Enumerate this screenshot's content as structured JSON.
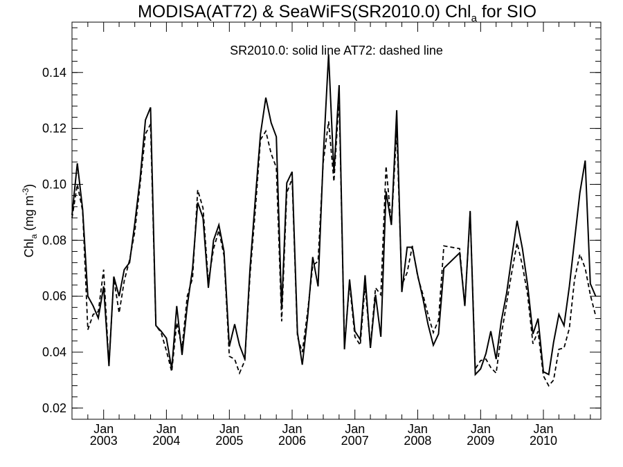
{
  "chart_data": {
    "type": "line",
    "title": {
      "main": "MODISA(AT72) & SeaWiFS(SR2010.0)  Chl",
      "sub": "a",
      "tail": " for SIO"
    },
    "annotation": "SR2010.0: solid line   AT72: dashed line",
    "ylabel": {
      "main": "Chl",
      "sub": "a",
      "mid": " (mg m",
      "sup": "-3",
      "end": ")"
    },
    "ylim": [
      0.016,
      0.158
    ],
    "yticks": [
      "0.02",
      "0.04",
      "0.06",
      "0.08",
      "0.10",
      "0.12",
      "0.14"
    ],
    "xlim": [
      "2002-07-01",
      "2010-12-01"
    ],
    "xticks": [
      {
        "month": "Jan",
        "year": "2003",
        "date": "2003-01-01"
      },
      {
        "month": "Jan",
        "year": "2004",
        "date": "2004-01-01"
      },
      {
        "month": "Jan",
        "year": "2005",
        "date": "2005-01-01"
      },
      {
        "month": "Jan",
        "year": "2006",
        "date": "2006-01-01"
      },
      {
        "month": "Jan",
        "year": "2007",
        "date": "2007-01-01"
      },
      {
        "month": "Jan",
        "year": "2008",
        "date": "2008-01-01"
      },
      {
        "month": "Jan",
        "year": "2009",
        "date": "2009-01-01"
      },
      {
        "month": "Jan",
        "year": "2010",
        "date": "2010-01-01"
      }
    ],
    "grid": false,
    "series": [
      {
        "name": "SR2010.0",
        "style": "solid",
        "color": "#000000",
        "points": [
          [
            "2002-07-01",
            0.089
          ],
          [
            "2002-08-01",
            0.1075
          ],
          [
            "2002-09-01",
            0.091
          ],
          [
            "2002-10-01",
            0.06
          ],
          [
            "2002-11-01",
            0.0565
          ],
          [
            "2002-12-01",
            0.0522
          ],
          [
            "2003-01-01",
            0.0635
          ],
          [
            "2003-02-01",
            0.035
          ],
          [
            "2003-03-01",
            0.067
          ],
          [
            "2003-04-01",
            0.06
          ],
          [
            "2003-05-01",
            0.0695
          ],
          [
            "2003-06-01",
            0.072
          ],
          [
            "2003-07-01",
            0.086
          ],
          [
            "2003-08-01",
            0.102
          ],
          [
            "2003-09-01",
            0.123
          ],
          [
            "2003-10-01",
            0.1275
          ],
          [
            "2003-11-01",
            0.0495
          ],
          [
            "2003-12-01",
            0.0475
          ],
          [
            "2004-01-01",
            0.045
          ],
          [
            "2004-02-01",
            0.034
          ],
          [
            "2004-03-01",
            0.0565
          ],
          [
            "2004-04-01",
            0.039
          ],
          [
            "2004-05-01",
            0.0565
          ],
          [
            "2004-06-01",
            0.07
          ],
          [
            "2004-07-01",
            0.0935
          ],
          [
            "2004-08-01",
            0.088
          ],
          [
            "2004-09-01",
            0.063
          ],
          [
            "2004-10-01",
            0.08
          ],
          [
            "2004-11-01",
            0.0855
          ],
          [
            "2004-12-01",
            0.076
          ],
          [
            "2005-01-01",
            0.042
          ],
          [
            "2005-02-01",
            0.05
          ],
          [
            "2005-03-01",
            0.0425
          ],
          [
            "2005-04-01",
            0.0375
          ],
          [
            "2005-05-01",
            0.07
          ],
          [
            "2005-06-01",
            0.095
          ],
          [
            "2005-07-01",
            0.118
          ],
          [
            "2005-08-01",
            0.131
          ],
          [
            "2005-09-01",
            0.122
          ],
          [
            "2005-10-01",
            0.117
          ],
          [
            "2005-11-01",
            0.0555
          ],
          [
            "2005-12-01",
            0.1005
          ],
          [
            "2006-01-01",
            0.1045
          ],
          [
            "2006-02-01",
            0.047
          ],
          [
            "2006-03-01",
            0.0355
          ],
          [
            "2006-04-01",
            0.0525
          ],
          [
            "2006-05-01",
            0.074
          ],
          [
            "2006-06-01",
            0.0635
          ],
          [
            "2006-07-01",
            0.11
          ],
          [
            "2006-08-01",
            0.1465
          ],
          [
            "2006-09-01",
            0.104
          ],
          [
            "2006-10-01",
            0.1355
          ],
          [
            "2006-11-01",
            0.041
          ],
          [
            "2006-12-01",
            0.066
          ],
          [
            "2007-01-01",
            0.0475
          ],
          [
            "2007-02-01",
            0.0445
          ],
          [
            "2007-03-01",
            0.0675
          ],
          [
            "2007-04-01",
            0.0415
          ],
          [
            "2007-05-01",
            0.0605
          ],
          [
            "2007-06-01",
            0.0455
          ],
          [
            "2007-07-01",
            0.0975
          ],
          [
            "2007-08-01",
            0.0855
          ],
          [
            "2007-09-01",
            0.1265
          ],
          [
            "2007-10-01",
            0.0615
          ],
          [
            "2007-11-01",
            0.0775
          ],
          [
            "2007-12-01",
            0.0775
          ],
          [
            "2008-01-01",
            0.0675
          ],
          [
            "2008-02-01",
            0.059
          ],
          [
            "2008-03-01",
            0.05
          ],
          [
            "2008-04-01",
            0.0425
          ],
          [
            "2008-05-01",
            0.0465
          ],
          [
            "2008-06-01",
            0.07
          ],
          [
            "2008-09-01",
            0.0755
          ],
          [
            "2008-10-01",
            0.0565
          ],
          [
            "2008-11-01",
            0.0905
          ],
          [
            "2008-12-01",
            0.032
          ],
          [
            "2009-01-01",
            0.034
          ],
          [
            "2009-02-01",
            0.0395
          ],
          [
            "2009-03-01",
            0.0475
          ],
          [
            "2009-04-01",
            0.0375
          ],
          [
            "2009-05-01",
            0.051
          ],
          [
            "2009-06-01",
            0.061
          ],
          [
            "2009-07-01",
            0.074
          ],
          [
            "2009-08-01",
            0.087
          ],
          [
            "2009-09-01",
            0.077
          ],
          [
            "2009-10-01",
            0.064
          ],
          [
            "2009-11-01",
            0.0465
          ],
          [
            "2009-12-01",
            0.052
          ],
          [
            "2010-01-01",
            0.033
          ],
          [
            "2010-02-01",
            0.032
          ],
          [
            "2010-03-01",
            0.0435
          ],
          [
            "2010-04-01",
            0.0535
          ],
          [
            "2010-05-01",
            0.0495
          ],
          [
            "2010-06-01",
            0.0635
          ],
          [
            "2010-07-01",
            0.08
          ],
          [
            "2010-08-01",
            0.097
          ],
          [
            "2010-09-01",
            0.1085
          ],
          [
            "2010-10-01",
            0.0645
          ],
          [
            "2010-11-01",
            0.06
          ]
        ]
      },
      {
        "name": "AT72",
        "style": "dashed",
        "color": "#000000",
        "points": [
          [
            "2002-07-01",
            0.088
          ],
          [
            "2002-08-01",
            0.1
          ],
          [
            "2002-09-01",
            0.0905
          ],
          [
            "2002-10-01",
            0.048
          ],
          [
            "2002-11-01",
            0.0535
          ],
          [
            "2002-12-01",
            0.0545
          ],
          [
            "2003-01-01",
            0.0695
          ],
          [
            "2003-02-01",
            0.0355
          ],
          [
            "2003-03-01",
            0.0665
          ],
          [
            "2003-04-01",
            0.054
          ],
          [
            "2003-05-01",
            0.0655
          ],
          [
            "2003-06-01",
            0.073
          ],
          [
            "2003-07-01",
            0.083
          ],
          [
            "2003-08-01",
            0.1
          ],
          [
            "2003-09-01",
            0.118
          ],
          [
            "2003-10-01",
            0.1215
          ],
          [
            "2003-11-01",
            0.0495
          ],
          [
            "2003-12-01",
            0.047
          ],
          [
            "2004-01-01",
            0.0405
          ],
          [
            "2004-02-01",
            0.033
          ],
          [
            "2004-03-01",
            0.0505
          ],
          [
            "2004-04-01",
            0.0415
          ],
          [
            "2004-05-01",
            0.06
          ],
          [
            "2004-06-01",
            0.0665
          ],
          [
            "2004-07-01",
            0.098
          ],
          [
            "2004-08-01",
            0.0915
          ],
          [
            "2004-09-01",
            0.065
          ],
          [
            "2004-10-01",
            0.077
          ],
          [
            "2004-11-01",
            0.0835
          ],
          [
            "2004-12-01",
            0.0745
          ],
          [
            "2005-01-01",
            0.0385
          ],
          [
            "2005-02-01",
            0.0375
          ],
          [
            "2005-03-01",
            0.0325
          ],
          [
            "2005-04-01",
            0.037
          ],
          [
            "2005-05-01",
            0.0675
          ],
          [
            "2005-06-01",
            0.091
          ],
          [
            "2005-07-01",
            0.116
          ],
          [
            "2005-08-01",
            0.119
          ],
          [
            "2005-09-01",
            0.111
          ],
          [
            "2005-10-01",
            0.106
          ],
          [
            "2005-11-01",
            0.051
          ],
          [
            "2005-12-01",
            0.097
          ],
          [
            "2006-01-01",
            0.102
          ],
          [
            "2006-02-01",
            0.0455
          ],
          [
            "2006-03-01",
            0.04
          ],
          [
            "2006-04-01",
            0.0545
          ],
          [
            "2006-05-01",
            0.071
          ],
          [
            "2006-06-01",
            0.0725
          ],
          [
            "2006-07-01",
            0.108
          ],
          [
            "2006-08-01",
            0.1225
          ],
          [
            "2006-09-01",
            0.101
          ],
          [
            "2006-10-01",
            0.131
          ],
          [
            "2006-11-01",
            0.0425
          ],
          [
            "2006-12-01",
            0.0645
          ],
          [
            "2007-01-01",
            0.0455
          ],
          [
            "2007-02-01",
            0.0425
          ],
          [
            "2007-03-01",
            0.064
          ],
          [
            "2007-04-01",
            0.042
          ],
          [
            "2007-05-01",
            0.063
          ],
          [
            "2007-06-01",
            0.0605
          ],
          [
            "2007-07-01",
            0.1065
          ],
          [
            "2007-08-01",
            0.0855
          ],
          [
            "2007-09-01",
            0.1195
          ],
          [
            "2007-10-01",
            0.064
          ],
          [
            "2007-11-01",
            0.0685
          ],
          [
            "2007-12-01",
            0.078
          ],
          [
            "2008-01-01",
            0.067
          ],
          [
            "2008-02-01",
            0.0605
          ],
          [
            "2008-03-01",
            0.0535
          ],
          [
            "2008-04-01",
            0.047
          ],
          [
            "2008-05-01",
            0.0515
          ],
          [
            "2008-06-01",
            0.078
          ],
          [
            "2008-09-01",
            0.077
          ],
          [
            "2008-10-01",
            0.0565
          ],
          [
            "2008-11-01",
            0.09
          ],
          [
            "2008-12-01",
            0.034
          ],
          [
            "2009-01-01",
            0.037
          ],
          [
            "2009-02-01",
            0.0375
          ],
          [
            "2009-03-01",
            0.0345
          ],
          [
            "2009-04-01",
            0.0325
          ],
          [
            "2009-05-01",
            0.046
          ],
          [
            "2009-06-01",
            0.0575
          ],
          [
            "2009-07-01",
            0.0685
          ],
          [
            "2009-08-01",
            0.079
          ],
          [
            "2009-09-01",
            0.071
          ],
          [
            "2009-10-01",
            0.0605
          ],
          [
            "2009-11-01",
            0.043
          ],
          [
            "2009-12-01",
            0.0475
          ],
          [
            "2010-01-01",
            0.0315
          ],
          [
            "2010-02-01",
            0.028
          ],
          [
            "2010-03-01",
            0.03
          ],
          [
            "2010-04-01",
            0.041
          ],
          [
            "2010-05-01",
            0.0415
          ],
          [
            "2010-06-01",
            0.0485
          ],
          [
            "2010-07-01",
            0.066
          ],
          [
            "2010-08-01",
            0.075
          ],
          [
            "2010-09-01",
            0.07
          ],
          [
            "2010-10-01",
            0.0605
          ],
          [
            "2010-11-01",
            0.053
          ]
        ]
      }
    ]
  }
}
